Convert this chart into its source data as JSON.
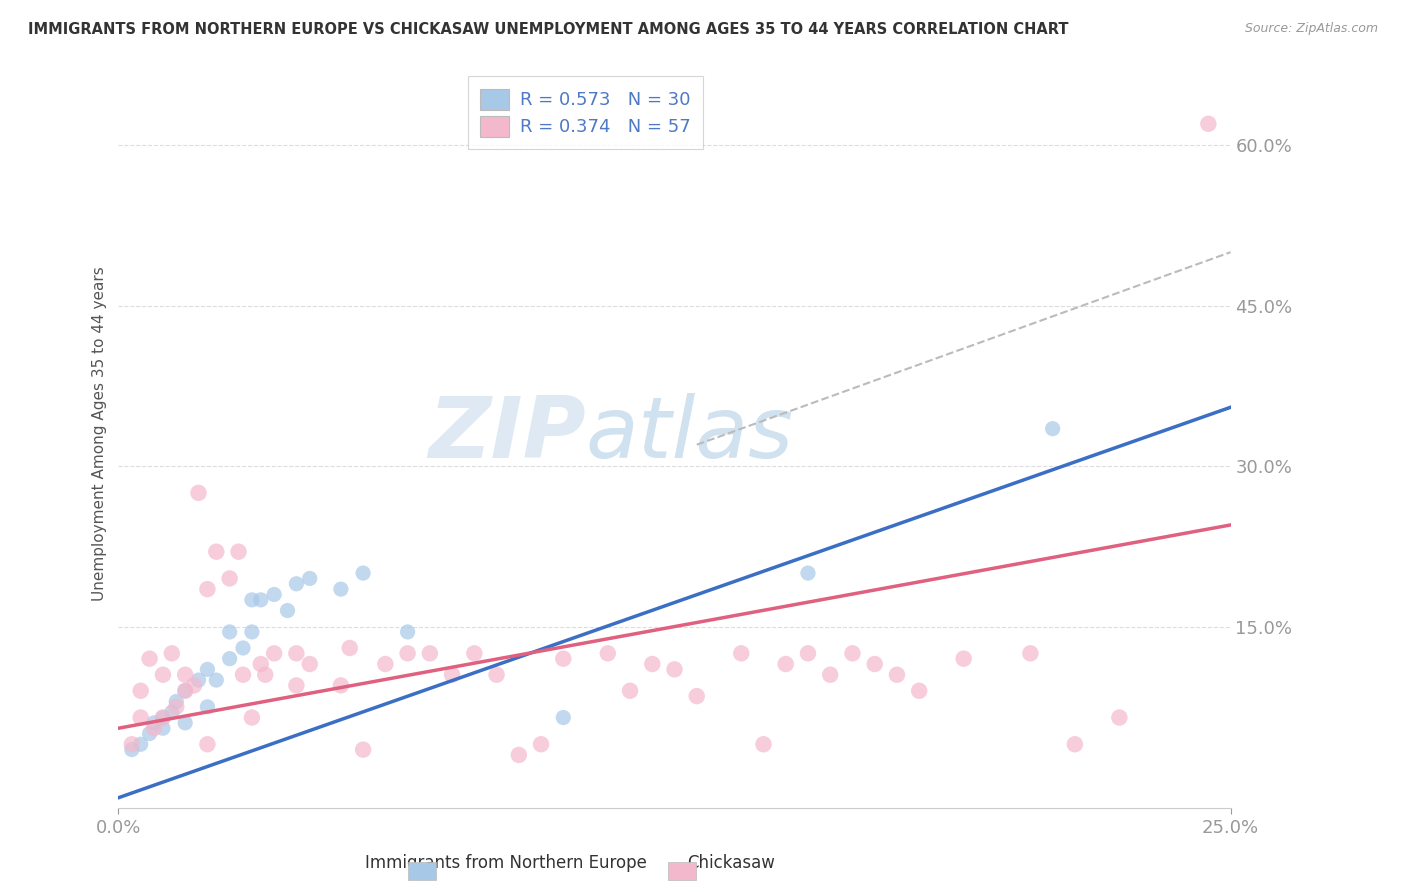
{
  "title": "IMMIGRANTS FROM NORTHERN EUROPE VS CHICKASAW UNEMPLOYMENT AMONG AGES 35 TO 44 YEARS CORRELATION CHART",
  "source": "Source: ZipAtlas.com",
  "ylabel": "Unemployment Among Ages 35 to 44 years",
  "xlim": [
    0.0,
    0.25
  ],
  "ylim": [
    -0.02,
    0.68
  ],
  "xticks": [
    0.0,
    0.25
  ],
  "xticklabels": [
    "0.0%",
    "25.0%"
  ],
  "ytick_positions": [
    0.15,
    0.3,
    0.45,
    0.6
  ],
  "ytick_labels": [
    "15.0%",
    "30.0%",
    "45.0%",
    "60.0%"
  ],
  "legend_line1": "R = 0.573   N = 30",
  "legend_line2": "R = 0.374   N = 57",
  "color_blue": "#a8c8e8",
  "color_pink": "#f4b8cc",
  "color_trendline_blue": "#3a6fc4",
  "color_trendline_pink": "#e06080",
  "color_trendline_dashed": "#bbbbbb",
  "color_axis_labels": "#4d79c7",
  "color_title": "#333333",
  "watermark_zip": "ZIP",
  "watermark_atlas": "atlas",
  "blue_points": [
    [
      0.003,
      0.035
    ],
    [
      0.005,
      0.04
    ],
    [
      0.007,
      0.05
    ],
    [
      0.008,
      0.06
    ],
    [
      0.01,
      0.055
    ],
    [
      0.01,
      0.065
    ],
    [
      0.012,
      0.07
    ],
    [
      0.013,
      0.08
    ],
    [
      0.015,
      0.06
    ],
    [
      0.015,
      0.09
    ],
    [
      0.018,
      0.1
    ],
    [
      0.02,
      0.075
    ],
    [
      0.02,
      0.11
    ],
    [
      0.022,
      0.1
    ],
    [
      0.025,
      0.12
    ],
    [
      0.025,
      0.145
    ],
    [
      0.028,
      0.13
    ],
    [
      0.03,
      0.145
    ],
    [
      0.03,
      0.175
    ],
    [
      0.032,
      0.175
    ],
    [
      0.035,
      0.18
    ],
    [
      0.038,
      0.165
    ],
    [
      0.04,
      0.19
    ],
    [
      0.043,
      0.195
    ],
    [
      0.05,
      0.185
    ],
    [
      0.055,
      0.2
    ],
    [
      0.065,
      0.145
    ],
    [
      0.1,
      0.065
    ],
    [
      0.155,
      0.2
    ],
    [
      0.21,
      0.335
    ]
  ],
  "pink_points": [
    [
      0.003,
      0.04
    ],
    [
      0.005,
      0.065
    ],
    [
      0.005,
      0.09
    ],
    [
      0.007,
      0.12
    ],
    [
      0.008,
      0.055
    ],
    [
      0.01,
      0.065
    ],
    [
      0.01,
      0.105
    ],
    [
      0.012,
      0.125
    ],
    [
      0.013,
      0.075
    ],
    [
      0.015,
      0.09
    ],
    [
      0.015,
      0.105
    ],
    [
      0.017,
      0.095
    ],
    [
      0.018,
      0.275
    ],
    [
      0.02,
      0.04
    ],
    [
      0.02,
      0.185
    ],
    [
      0.022,
      0.22
    ],
    [
      0.025,
      0.195
    ],
    [
      0.027,
      0.22
    ],
    [
      0.028,
      0.105
    ],
    [
      0.03,
      0.065
    ],
    [
      0.032,
      0.115
    ],
    [
      0.033,
      0.105
    ],
    [
      0.035,
      0.125
    ],
    [
      0.04,
      0.095
    ],
    [
      0.04,
      0.125
    ],
    [
      0.043,
      0.115
    ],
    [
      0.05,
      0.095
    ],
    [
      0.052,
      0.13
    ],
    [
      0.055,
      0.035
    ],
    [
      0.06,
      0.115
    ],
    [
      0.065,
      0.125
    ],
    [
      0.07,
      0.125
    ],
    [
      0.075,
      0.105
    ],
    [
      0.08,
      0.125
    ],
    [
      0.085,
      0.105
    ],
    [
      0.09,
      0.03
    ],
    [
      0.095,
      0.04
    ],
    [
      0.1,
      0.12
    ],
    [
      0.11,
      0.125
    ],
    [
      0.115,
      0.09
    ],
    [
      0.12,
      0.115
    ],
    [
      0.125,
      0.11
    ],
    [
      0.13,
      0.085
    ],
    [
      0.14,
      0.125
    ],
    [
      0.145,
      0.04
    ],
    [
      0.15,
      0.115
    ],
    [
      0.155,
      0.125
    ],
    [
      0.16,
      0.105
    ],
    [
      0.165,
      0.125
    ],
    [
      0.17,
      0.115
    ],
    [
      0.175,
      0.105
    ],
    [
      0.18,
      0.09
    ],
    [
      0.19,
      0.12
    ],
    [
      0.205,
      0.125
    ],
    [
      0.215,
      0.04
    ],
    [
      0.225,
      0.065
    ],
    [
      0.245,
      0.62
    ]
  ],
  "blue_trendline_pts": [
    [
      0.0,
      -0.01
    ],
    [
      0.25,
      0.355
    ]
  ],
  "pink_trendline_pts": [
    [
      0.0,
      0.055
    ],
    [
      0.25,
      0.245
    ]
  ],
  "dashed_line_pts": [
    [
      0.13,
      0.32
    ],
    [
      0.25,
      0.5
    ]
  ],
  "background_color": "#ffffff",
  "grid_color": "#dddddd"
}
